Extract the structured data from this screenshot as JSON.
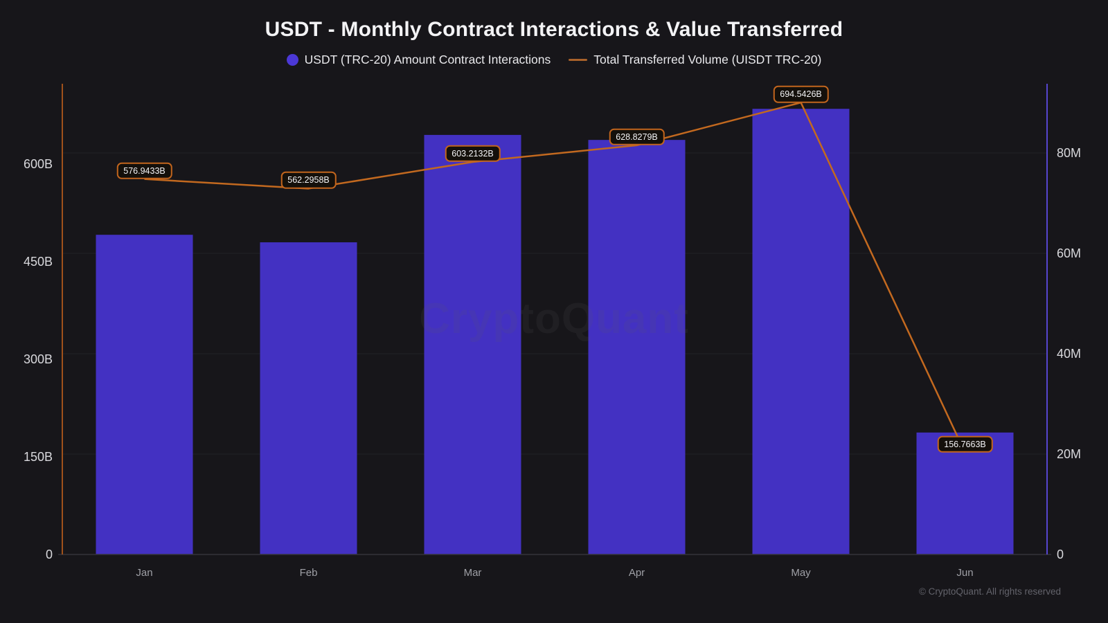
{
  "title": "USDT - Monthly Contract Interactions & Value Transferred",
  "legend": [
    {
      "label": "USDT (TRC-20) Amount Contract Interactions",
      "marker": "circle",
      "color": "#4b38d6"
    },
    {
      "label": "Total Transferred Volume (UISDT TRC-20)",
      "marker": "line",
      "color": "#a9622a"
    }
  ],
  "watermark": "CryptoQuant",
  "footer": {
    "copyright": "© CryptoQuant. All rights reserved"
  },
  "colors": {
    "background": "#17161a",
    "bar": "#4331c2",
    "line": "#c3691f",
    "left_axis_line": "#a0511b",
    "right_axis_line": "#5646cf",
    "gridline": "#222127",
    "baseline": "#35343b",
    "label_border": "#c2651d",
    "label_background": "#14100b"
  },
  "chart_data": {
    "type": "bar",
    "subtype": "bar-and-line-dual-axis",
    "categories": [
      "Jan",
      "Feb",
      "Mar",
      "Apr",
      "May",
      "Jun"
    ],
    "series": [
      {
        "name": "USDT (TRC-20) Amount Contract Interactions",
        "type": "bar",
        "axis": "right",
        "unit": "M",
        "values": [
          63.7,
          62.2,
          83.6,
          82.6,
          88.8,
          24.3
        ]
      },
      {
        "name": "Total Transferred Volume (UISDT TRC-20)",
        "type": "line",
        "axis": "left",
        "unit": "B",
        "values": [
          576.9433,
          562.2958,
          603.2132,
          628.8279,
          694.5426,
          156.7663
        ],
        "point_labels": [
          "576.9433B",
          "562.2958B",
          "603.2132B",
          "628.8279B",
          "694.5426B",
          "156.7663B"
        ]
      }
    ],
    "left_axis": {
      "tick_labels": [
        "0",
        "150B",
        "300B",
        "450B",
        "600B"
      ],
      "tick_values": [
        0,
        150,
        300,
        450,
        600
      ],
      "range": [
        0,
        723
      ]
    },
    "right_axis": {
      "tick_labels": [
        "0",
        "20M",
        "40M",
        "60M",
        "80M"
      ],
      "tick_values": [
        0,
        20,
        40,
        60,
        80
      ],
      "range": [
        0,
        93.8
      ]
    },
    "grid": true,
    "legend_position": "top",
    "xlabel": "",
    "ylabel_left": "",
    "ylabel_right": ""
  }
}
